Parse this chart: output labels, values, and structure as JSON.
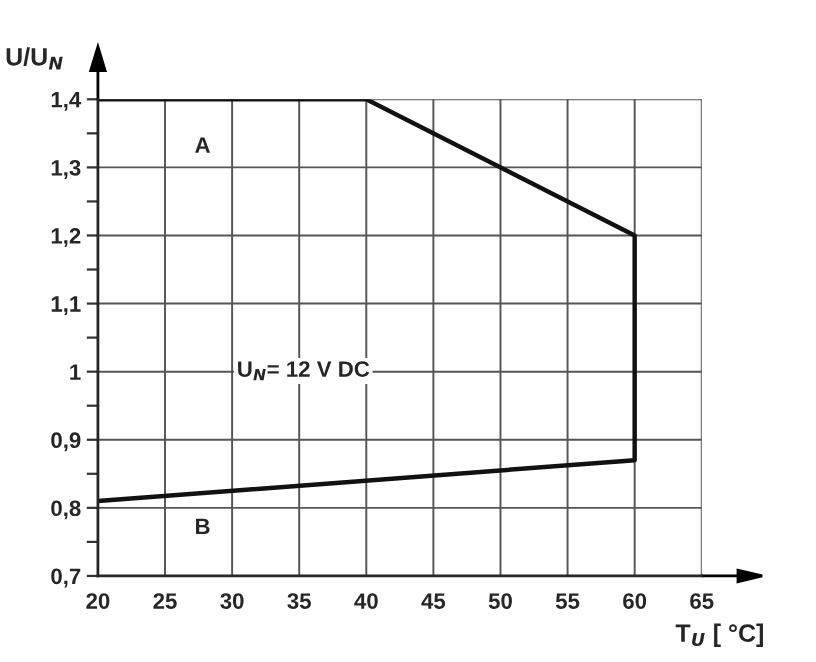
{
  "chart_data": {
    "type": "line",
    "xlabel": "T$_{U}$ [ °C]",
    "ylabel": "U/U$_{N}$",
    "x": [
      20,
      60,
      60,
      40,
      20
    ],
    "series": [
      {
        "color": "#111111",
        "values": [
          0.81,
          0.87,
          1.2,
          1.4,
          1.4
        ]
      }
    ],
    "annotations": [
      "A",
      "B",
      "U$_{N}$= 12 V DC"
    ],
    "xlim": [
      20,
      65
    ],
    "ylim": [
      0.7,
      1.4
    ],
    "xticks": [
      20,
      25,
      30,
      35,
      40,
      45,
      50,
      55,
      60,
      65
    ],
    "yticks": [
      {
        "value": 0.7,
        "label": "0,7"
      },
      {
        "value": 0.75,
        "label": null
      },
      {
        "value": 0.8,
        "label": "0,8"
      },
      {
        "value": 0.85,
        "label": null
      },
      {
        "value": 0.9,
        "label": "0,9"
      },
      {
        "value": 0.95,
        "label": null
      },
      {
        "value": 1,
        "label": "1"
      },
      {
        "value": 1.05,
        "label": null
      },
      {
        "value": 1.1,
        "label": "1,1"
      },
      {
        "value": 1.15,
        "label": null
      },
      {
        "value": 1.2,
        "label": "1,2"
      },
      {
        "value": 1.25,
        "label": null
      },
      {
        "value": 1.3,
        "label": "1,3"
      },
      {
        "value": 1.35,
        "label": null
      },
      {
        "value": 1.4,
        "label": "1,4"
      }
    ],
    "grid": true,
    "legend": false
  }
}
